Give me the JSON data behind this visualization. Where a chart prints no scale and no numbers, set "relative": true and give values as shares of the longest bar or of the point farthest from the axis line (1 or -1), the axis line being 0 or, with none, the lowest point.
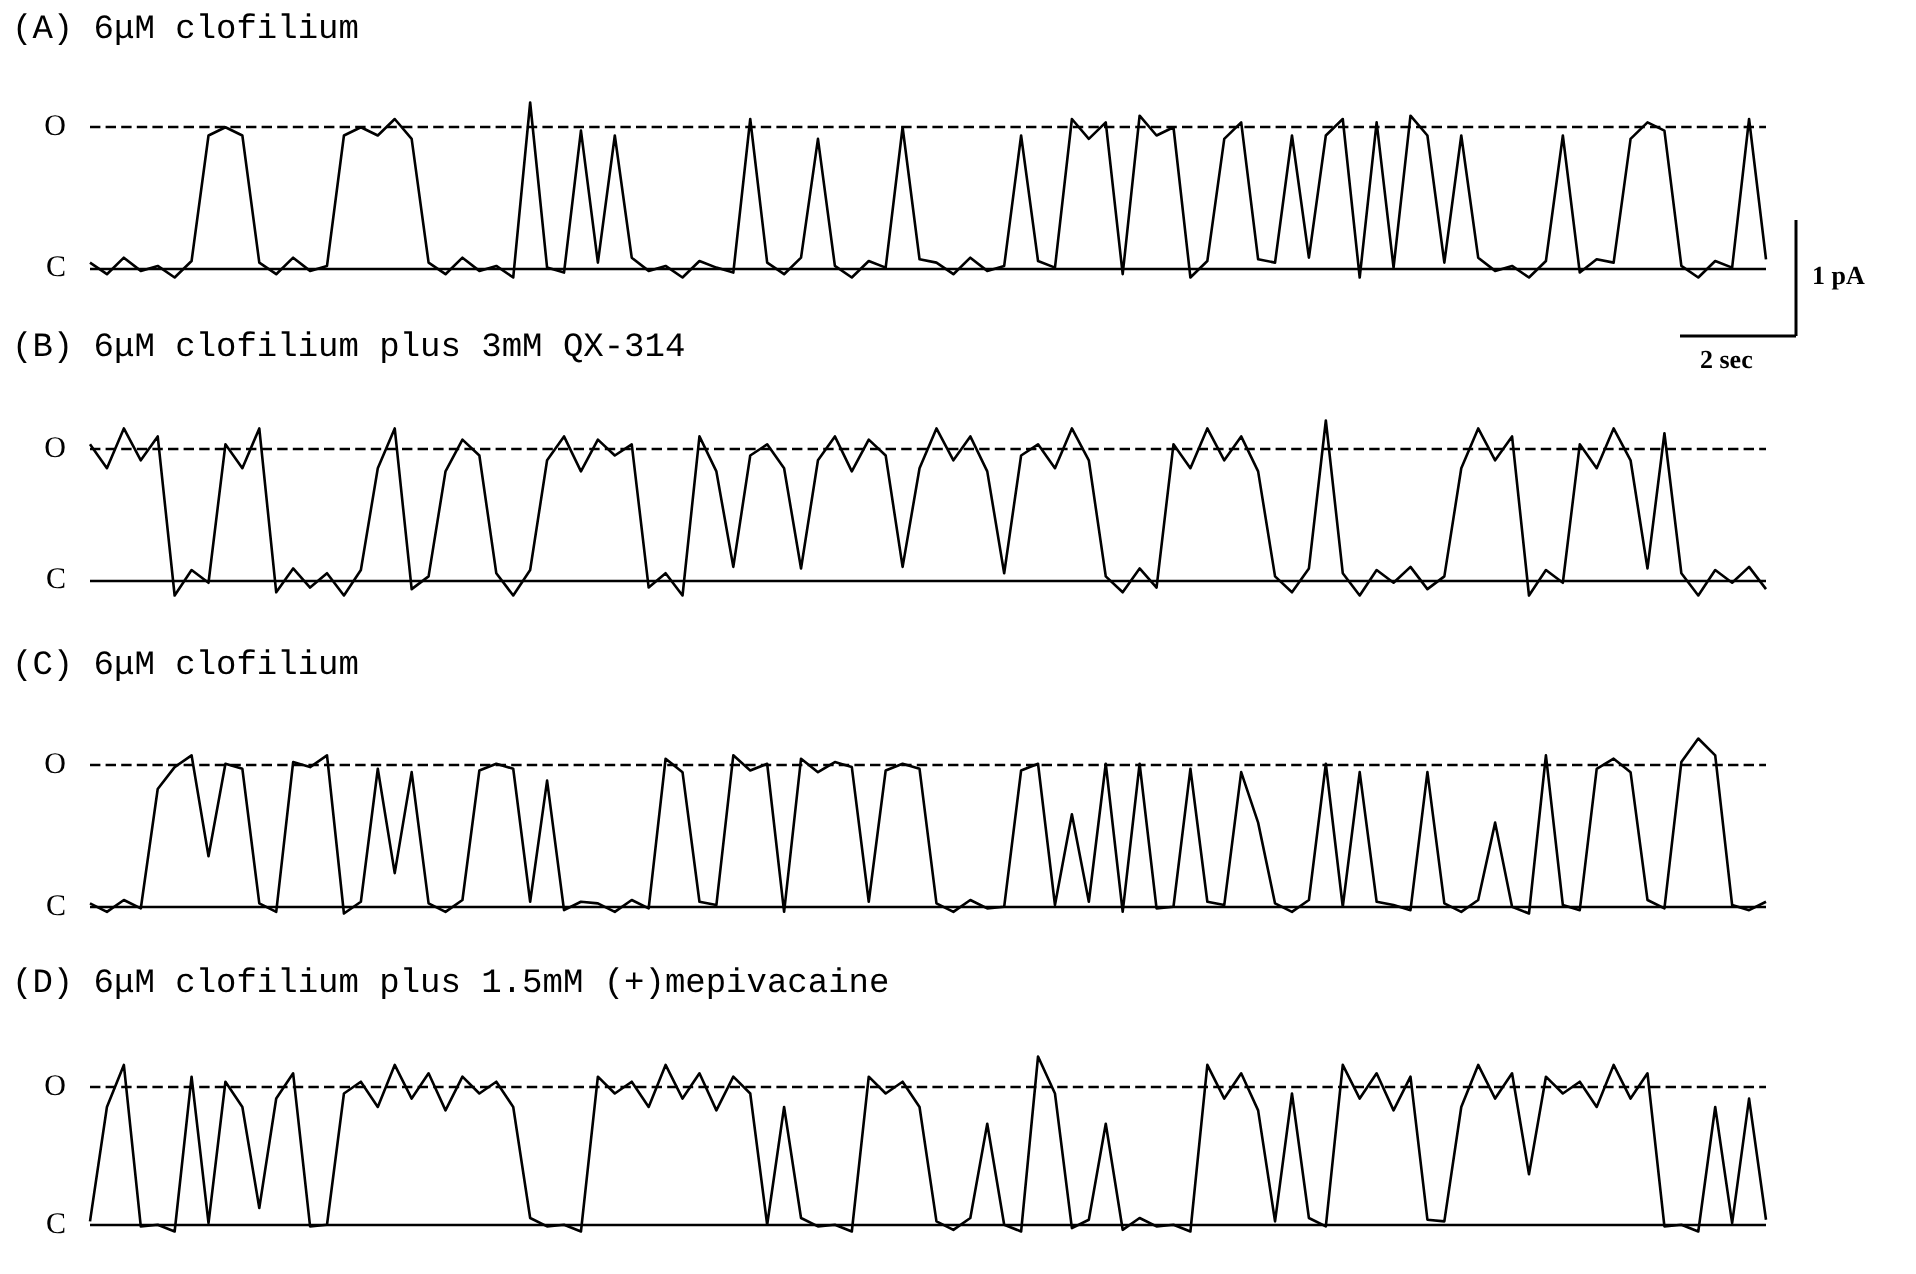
{
  "chart_data": [
    {
      "type": "line",
      "title": "(A) 6μM clofilium",
      "relative": true,
      "grid": false,
      "marker": "none",
      "line_style": "solid",
      "categories": [
        null,
        null,
        null,
        null,
        null,
        null,
        null,
        null,
        null,
        null,
        null,
        null,
        null,
        null,
        null,
        null,
        null,
        null,
        null,
        null,
        null,
        null,
        null,
        null,
        null,
        null,
        null,
        null,
        null,
        null,
        null,
        null,
        null,
        null,
        null,
        null,
        null,
        null,
        null,
        null,
        null,
        null,
        null,
        null,
        null,
        null,
        null,
        null,
        null,
        null,
        null,
        null,
        null,
        null,
        null,
        null,
        null,
        null,
        null,
        null,
        null,
        null,
        null,
        null,
        null,
        null,
        null,
        null,
        null,
        null,
        null,
        null,
        null,
        null,
        null,
        null,
        null,
        null,
        null,
        null,
        null,
        null,
        null,
        null,
        null,
        null,
        null,
        null,
        null,
        null,
        null,
        null,
        null,
        null,
        null,
        null,
        null,
        null,
        null,
        null
      ],
      "series": [
        {
          "color": "#000000",
          "values": [
            0.03,
            -0.04,
            0.06,
            -0.02,
            0.01,
            -0.06,
            0.04,
            0.8,
            0.85,
            0.8,
            0.03,
            -0.04,
            0.06,
            -0.02,
            0.01,
            0.8,
            0.85,
            0.8,
            0.9,
            0.78,
            0.03,
            -0.04,
            0.06,
            -0.02,
            0.01,
            -0.06,
            1,
            0,
            -0.03,
            0.83,
            0.03,
            0.8,
            0.06,
            -0.02,
            0.01,
            -0.06,
            0.04,
            0,
            -0.03,
            0.9,
            0.03,
            -0.04,
            0.06,
            0.78,
            0.01,
            -0.06,
            0.04,
            0,
            0.85,
            0.05,
            0.03,
            -0.04,
            0.06,
            -0.02,
            0.01,
            0.8,
            0.04,
            0,
            0.9,
            0.78,
            0.88,
            -0.04,
            0.92,
            0.8,
            0.85,
            -0.06,
            0.04,
            0.78,
            0.88,
            0.05,
            0.03,
            0.8,
            0.06,
            0.8,
            0.9,
            -0.06,
            0.88,
            0,
            0.92,
            0.8,
            0.03,
            0.8,
            0.06,
            -0.02,
            0.01,
            -0.06,
            0.04,
            0.8,
            -0.03,
            0.05,
            0.03,
            0.78,
            0.88,
            0.83,
            0.01,
            -0.06,
            0.04,
            0,
            0.9,
            0.05
          ]
        }
      ],
      "ref_lines": [
        {
          "axis": "y",
          "value": 0.85,
          "label": "O",
          "line_style": "dashed"
        },
        {
          "axis": "y",
          "value": 0,
          "label": "C",
          "line_style": "solid"
        }
      ],
      "annotations": [
        "1 pA",
        "2 sec"
      ]
    },
    {
      "type": "line",
      "title": "(B) 6μM clofilium plus 3mM QX-314",
      "relative": true,
      "grid": false,
      "marker": "none",
      "line_style": "solid",
      "categories": [
        null,
        null,
        null,
        null,
        null,
        null,
        null,
        null,
        null,
        null,
        null,
        null,
        null,
        null,
        null,
        null,
        null,
        null,
        null,
        null,
        null,
        null,
        null,
        null,
        null,
        null,
        null,
        null,
        null,
        null,
        null,
        null,
        null,
        null,
        null,
        null,
        null,
        null,
        null,
        null,
        null,
        null,
        null,
        null,
        null,
        null,
        null,
        null,
        null,
        null,
        null,
        null,
        null,
        null,
        null,
        null,
        null,
        null,
        null,
        null,
        null,
        null,
        null,
        null,
        null,
        null,
        null,
        null,
        null,
        null,
        null,
        null,
        null,
        null,
        null,
        null,
        null,
        null,
        null,
        null,
        null,
        null,
        null,
        null,
        null,
        null,
        null,
        null,
        null,
        null,
        null,
        null,
        null,
        null,
        null,
        null,
        null,
        null,
        null,
        null
      ],
      "series": [
        {
          "color": "#000000",
          "values": [
            0.85,
            0.7,
            0.95,
            0.75,
            0.9,
            -0.1,
            0.06,
            -0.02,
            0.85,
            0.7,
            0.95,
            -0.08,
            0.07,
            -0.05,
            0.04,
            -0.1,
            0.06,
            0.7,
            0.95,
            -0.06,
            0.02,
            0.68,
            0.88,
            0.78,
            0.04,
            -0.1,
            0.06,
            0.75,
            0.9,
            0.68,
            0.88,
            0.78,
            0.85,
            -0.05,
            0.04,
            -0.1,
            0.9,
            0.68,
            0.08,
            0.78,
            0.85,
            0.7,
            0.07,
            0.75,
            0.9,
            0.68,
            0.88,
            0.78,
            0.08,
            0.7,
            0.95,
            0.75,
            0.9,
            0.68,
            0.04,
            0.78,
            0.85,
            0.7,
            0.95,
            0.75,
            0.02,
            -0.08,
            0.07,
            -0.05,
            0.85,
            0.7,
            0.95,
            0.75,
            0.9,
            0.68,
            0.02,
            -0.08,
            0.07,
            1,
            0.04,
            -0.1,
            0.06,
            -0.02,
            0.08,
            -0.06,
            0.02,
            0.7,
            0.95,
            0.75,
            0.9,
            -0.1,
            0.06,
            -0.02,
            0.85,
            0.7,
            0.95,
            0.75,
            0.07,
            0.92,
            0.04,
            -0.1,
            0.06,
            -0.02,
            0.08,
            -0.06
          ]
        }
      ],
      "ref_lines": [
        {
          "axis": "y",
          "value": 0.82,
          "label": "O",
          "line_style": "dashed"
        },
        {
          "axis": "y",
          "value": 0,
          "label": "C",
          "line_style": "solid"
        }
      ]
    },
    {
      "type": "line",
      "title": "(C) 6μM clofilium",
      "relative": true,
      "grid": false,
      "marker": "none",
      "line_style": "solid",
      "categories": [
        null,
        null,
        null,
        null,
        null,
        null,
        null,
        null,
        null,
        null,
        null,
        null,
        null,
        null,
        null,
        null,
        null,
        null,
        null,
        null,
        null,
        null,
        null,
        null,
        null,
        null,
        null,
        null,
        null,
        null,
        null,
        null,
        null,
        null,
        null,
        null,
        null,
        null,
        null,
        null,
        null,
        null,
        null,
        null,
        null,
        null,
        null,
        null,
        null,
        null,
        null,
        null,
        null,
        null,
        null,
        null,
        null,
        null,
        null,
        null,
        null,
        null,
        null,
        null,
        null,
        null,
        null,
        null,
        null,
        null,
        null,
        null,
        null,
        null,
        null,
        null,
        null,
        null,
        null,
        null,
        null,
        null,
        null,
        null,
        null,
        null,
        null,
        null,
        null,
        null,
        null,
        null,
        null,
        null,
        null,
        null,
        null,
        null,
        null,
        null
      ],
      "series": [
        {
          "color": "#000000",
          "values": [
            0.02,
            -0.03,
            0.04,
            -0.01,
            0.7,
            0.83,
            0.9,
            0.3,
            0.85,
            0.82,
            0.02,
            -0.03,
            0.86,
            0.83,
            0.9,
            -0.04,
            0.03,
            0.82,
            0.2,
            0.8,
            0.02,
            -0.03,
            0.04,
            0.81,
            0.85,
            0.82,
            0.03,
            0.75,
            -0.02,
            0.03,
            0.02,
            -0.03,
            0.04,
            -0.01,
            0.88,
            0.8,
            0.03,
            0.01,
            0.9,
            0.81,
            0.85,
            -0.03,
            0.88,
            0.8,
            0.86,
            0.83,
            0.03,
            0.81,
            0.85,
            0.82,
            0.02,
            -0.03,
            0.04,
            -0.01,
            0,
            0.81,
            0.85,
            0.01,
            0.55,
            0.03,
            0.85,
            -0.03,
            0.85,
            -0.01,
            0,
            0.82,
            0.03,
            0.01,
            0.8,
            0.5,
            0.02,
            -0.03,
            0.04,
            0.85,
            0,
            0.8,
            0.03,
            0.01,
            -0.02,
            0.8,
            0.02,
            -0.03,
            0.04,
            0.5,
            0,
            -0.04,
            0.9,
            0.01,
            -0.02,
            0.82,
            0.88,
            0.8,
            0.04,
            -0.01,
            0.86,
            1,
            0.9,
            0.01,
            -0.02,
            0.03
          ]
        }
      ],
      "ref_lines": [
        {
          "axis": "y",
          "value": 0.84,
          "label": "O",
          "line_style": "dashed"
        },
        {
          "axis": "y",
          "value": 0,
          "label": "C",
          "line_style": "solid"
        }
      ]
    },
    {
      "type": "line",
      "title": "(D) 6μM clofilium plus 1.5mM (+)mepivacaine",
      "relative": true,
      "grid": false,
      "marker": "none",
      "line_style": "solid",
      "categories": [
        null,
        null,
        null,
        null,
        null,
        null,
        null,
        null,
        null,
        null,
        null,
        null,
        null,
        null,
        null,
        null,
        null,
        null,
        null,
        null,
        null,
        null,
        null,
        null,
        null,
        null,
        null,
        null,
        null,
        null,
        null,
        null,
        null,
        null,
        null,
        null,
        null,
        null,
        null,
        null,
        null,
        null,
        null,
        null,
        null,
        null,
        null,
        null,
        null,
        null,
        null,
        null,
        null,
        null,
        null,
        null,
        null,
        null,
        null,
        null,
        null,
        null,
        null,
        null,
        null,
        null,
        null,
        null,
        null,
        null,
        null,
        null,
        null,
        null,
        null,
        null,
        null,
        null,
        null,
        null,
        null,
        null,
        null,
        null,
        null,
        null,
        null,
        null,
        null,
        null,
        null,
        null,
        null,
        null,
        null,
        null,
        null,
        null,
        null,
        null
      ],
      "series": [
        {
          "color": "#000000",
          "values": [
            0.02,
            0.7,
            0.95,
            -0.01,
            0,
            -0.04,
            0.88,
            0.01,
            0.85,
            0.7,
            0.1,
            0.75,
            0.9,
            -0.01,
            0,
            0.78,
            0.85,
            0.7,
            0.95,
            0.75,
            0.9,
            0.68,
            0.88,
            0.78,
            0.85,
            0.7,
            0.04,
            -0.01,
            0,
            -0.04,
            0.88,
            0.78,
            0.85,
            0.7,
            0.95,
            0.75,
            0.9,
            0.68,
            0.88,
            0.78,
            0,
            0.7,
            0.04,
            -0.01,
            0,
            -0.04,
            0.88,
            0.78,
            0.85,
            0.7,
            0.02,
            -0.03,
            0.04,
            0.6,
            0,
            -0.04,
            1,
            0.78,
            -0.02,
            0.03,
            0.6,
            -0.03,
            0.04,
            -0.01,
            0,
            -0.04,
            0.95,
            0.75,
            0.9,
            0.68,
            0.02,
            0.78,
            0.04,
            -0.01,
            0.95,
            0.75,
            0.9,
            0.68,
            0.88,
            0.03,
            0.02,
            0.7,
            0.95,
            0.75,
            0.9,
            0.3,
            0.88,
            0.78,
            0.85,
            0.7,
            0.95,
            0.75,
            0.9,
            -0.01,
            0,
            -0.04,
            0.7,
            0.01,
            0.75,
            0.03
          ]
        }
      ],
      "ref_lines": [
        {
          "axis": "y",
          "value": 0.82,
          "label": "O",
          "line_style": "dashed"
        },
        {
          "axis": "y",
          "value": 0,
          "label": "C",
          "line_style": "solid"
        }
      ]
    }
  ]
}
